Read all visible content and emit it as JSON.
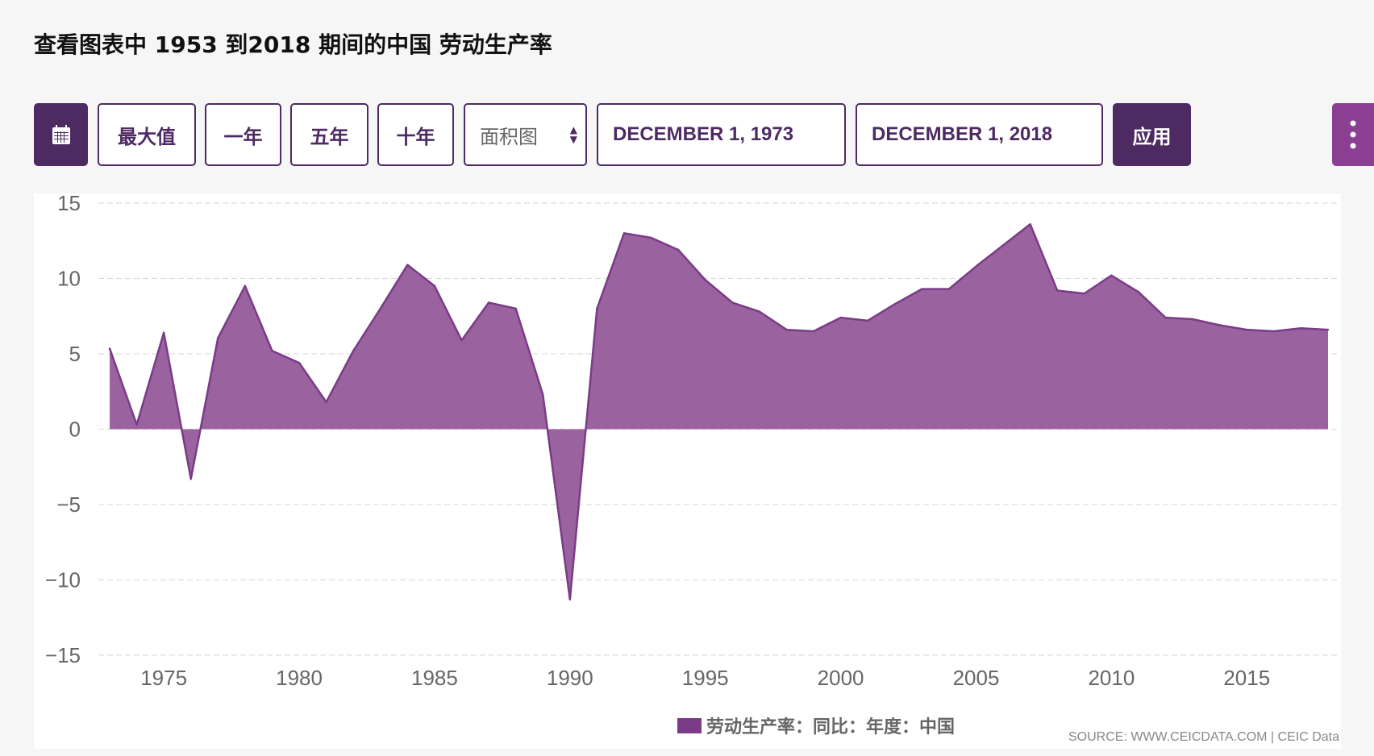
{
  "header": {
    "title": "查看图表中 1953 到2018 期间的中国 劳动生产率"
  },
  "toolbar": {
    "calendar_icon": "calendar-icon",
    "max_label": "最大值",
    "one_year_label": "一年",
    "five_year_label": "五年",
    "ten_year_label": "十年",
    "chart_type_selected": "面积图",
    "start_date": "DECEMBER 1, 1973",
    "end_date": "DECEMBER 1, 2018",
    "apply_label": "应用",
    "more_icon": "vertical-ellipsis-icon"
  },
  "colors": {
    "accent": "#4e2a63",
    "fill": "#9a63a0",
    "line": "#7a3b87"
  },
  "chart_data": {
    "type": "area",
    "x": [
      1973,
      1974,
      1975,
      1976,
      1977,
      1978,
      1979,
      1980,
      1981,
      1982,
      1983,
      1984,
      1985,
      1986,
      1987,
      1988,
      1989,
      1990,
      1991,
      1992,
      1993,
      1994,
      1995,
      1996,
      1997,
      1998,
      1999,
      2000,
      2001,
      2002,
      2003,
      2004,
      2005,
      2006,
      2007,
      2008,
      2009,
      2010,
      2011,
      2012,
      2013,
      2014,
      2015,
      2016,
      2017,
      2018
    ],
    "series": [
      {
        "name": "劳动生产率：同比：年度：中国",
        "values": [
          5.35,
          0.3,
          6.4,
          -3.3,
          6.05,
          9.5,
          5.2,
          4.4,
          1.8,
          5.2,
          8.0,
          10.9,
          9.5,
          5.9,
          8.4,
          8.0,
          2.3,
          -11.3,
          8.0,
          13.0,
          12.7,
          11.9,
          9.9,
          8.4,
          7.8,
          6.6,
          6.5,
          7.4,
          7.2,
          8.3,
          9.3,
          9.3,
          10.8,
          12.2,
          13.6,
          9.2,
          9.0,
          10.2,
          9.1,
          7.4,
          7.3,
          6.9,
          6.6,
          6.5,
          6.7,
          6.6
        ]
      }
    ],
    "ylim": [
      -15,
      15
    ],
    "yticks": [
      "15",
      "10",
      "5",
      "0",
      "−5",
      "−10",
      "−15"
    ],
    "xticks": [
      "1975",
      "1980",
      "1985",
      "1990",
      "1995",
      "2000",
      "2005",
      "2010",
      "2015"
    ],
    "grid": true,
    "legend": "bottom-center",
    "source": "SOURCE: WWW.CEICDATA.COM | CEIC Data"
  }
}
